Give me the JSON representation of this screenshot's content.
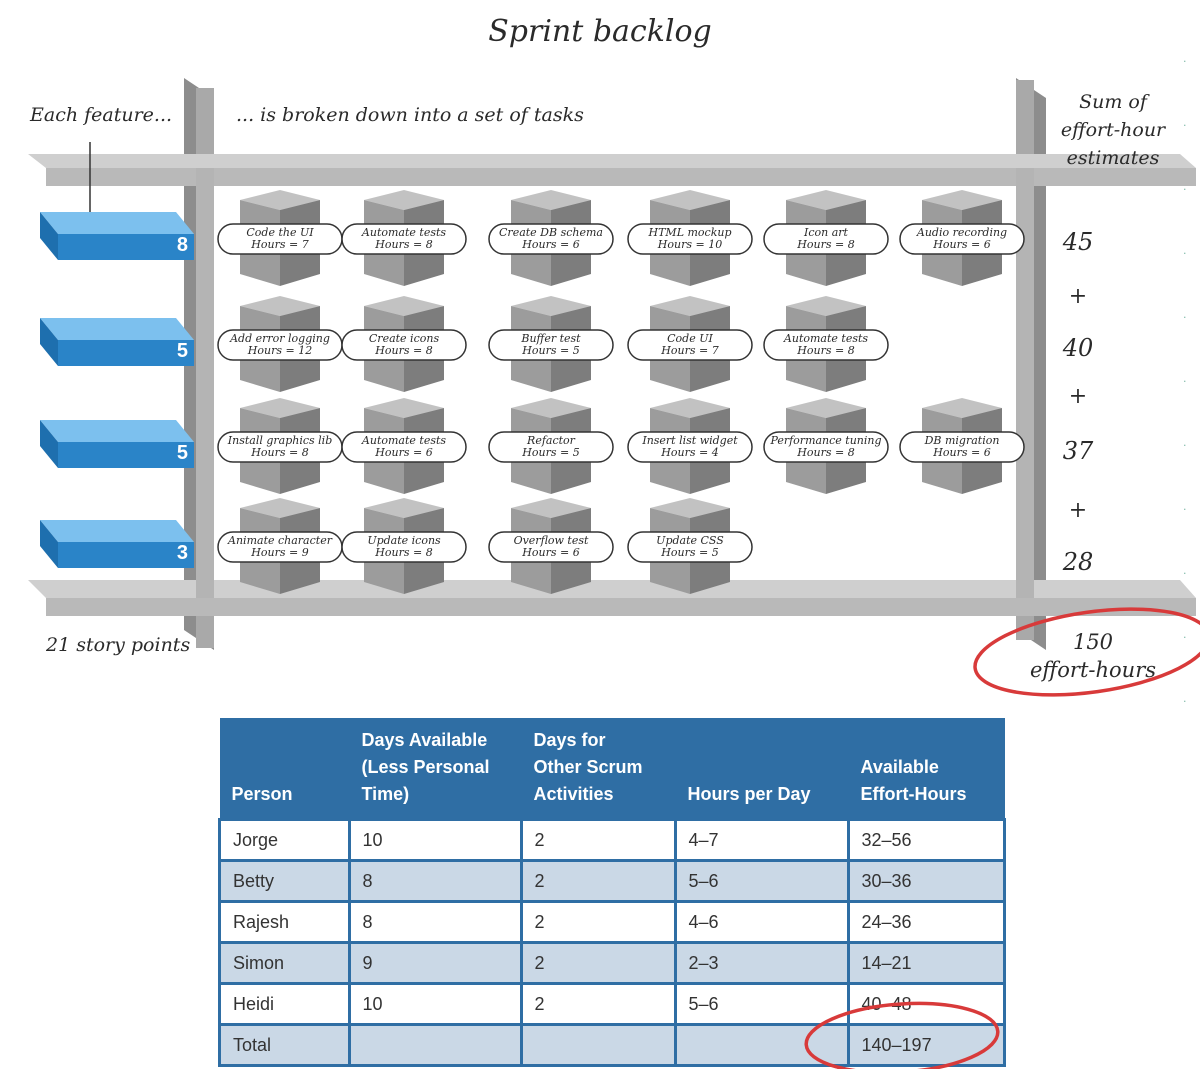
{
  "title": "Sprint backlog",
  "captions": {
    "left": "Each feature...",
    "middle": "... is broken down into a set of tasks",
    "right": [
      "Sum of",
      "effort-hour",
      "estimates"
    ],
    "story_points_total": "21 story points",
    "effort_total": [
      "150",
      "effort-hours"
    ]
  },
  "features": [
    {
      "points": "8",
      "sum": "45",
      "tasks": [
        {
          "name": "Code the UI",
          "hours": "Hours = 7"
        },
        {
          "name": "Automate tests",
          "hours": "Hours = 8"
        },
        {
          "name": "Create DB schema",
          "hours": "Hours = 6"
        },
        {
          "name": "HTML mockup",
          "hours": "Hours = 10"
        },
        {
          "name": "Icon art",
          "hours": "Hours = 8"
        },
        {
          "name": "Audio recording",
          "hours": "Hours = 6"
        }
      ]
    },
    {
      "points": "5",
      "sum": "40",
      "tasks": [
        {
          "name": "Add error logging",
          "hours": "Hours = 12"
        },
        {
          "name": "Create icons",
          "hours": "Hours = 8"
        },
        {
          "name": "Buffer test",
          "hours": "Hours = 5"
        },
        {
          "name": "Code UI",
          "hours": "Hours = 7"
        },
        {
          "name": "Automate tests",
          "hours": "Hours = 8"
        }
      ]
    },
    {
      "points": "5",
      "sum": "37",
      "tasks": [
        {
          "name": "Install graphics lib",
          "hours": "Hours = 8"
        },
        {
          "name": "Automate tests",
          "hours": "Hours = 6"
        },
        {
          "name": "Refactor",
          "hours": "Hours = 5"
        },
        {
          "name": "Insert list widget",
          "hours": "Hours = 4"
        },
        {
          "name": "Performance tuning",
          "hours": "Hours = 8"
        },
        {
          "name": "DB migration",
          "hours": "Hours = 6"
        }
      ]
    },
    {
      "points": "3",
      "sum": "28",
      "tasks": [
        {
          "name": "Animate character",
          "hours": "Hours = 9"
        },
        {
          "name": "Update icons",
          "hours": "Hours = 8"
        },
        {
          "name": "Overflow test",
          "hours": "Hours = 6"
        },
        {
          "name": "Update CSS",
          "hours": "Hours = 5"
        }
      ]
    }
  ],
  "plus_sign": "+",
  "colors": {
    "feature_blue": "#2a84c8",
    "shelf_gray": "#b9b9b9",
    "task_box": "#9c9c9c",
    "highlight_red": "#d83a3a",
    "table_header": "#2f6ea4",
    "table_row_alt": "#cad8e6"
  },
  "table": {
    "headers": [
      "Person",
      "Days Available (Less Personal Time)",
      "Days for Other Scrum Activities",
      "Hours per Day",
      "Available Effort-Hours"
    ],
    "header_lines": [
      [
        "Person"
      ],
      [
        "Days Available",
        "(Less Personal",
        "Time)"
      ],
      [
        "Days for",
        "Other Scrum",
        "Activities"
      ],
      [
        "Hours per Day"
      ],
      [
        "Available",
        "Effort-Hours"
      ]
    ],
    "rows": [
      [
        "Jorge",
        "10",
        "2",
        "4–7",
        "32–56"
      ],
      [
        "Betty",
        "8",
        "2",
        "5–6",
        "30–36"
      ],
      [
        "Rajesh",
        "8",
        "2",
        "4–6",
        "24–36"
      ],
      [
        "Simon",
        "9",
        "2",
        "2–3",
        "14–21"
      ],
      [
        "Heidi",
        "10",
        "2",
        "5–6",
        "40–48"
      ],
      [
        "Total",
        "",
        "",
        "",
        "140–197"
      ]
    ]
  }
}
